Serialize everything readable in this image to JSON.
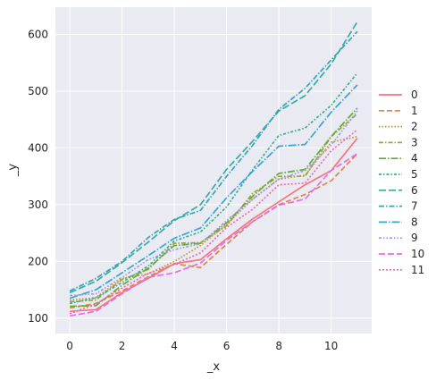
{
  "chart_data": {
    "type": "line",
    "xlabel": "_x",
    "ylabel": "_y",
    "xlim": [
      -0.55,
      11.55
    ],
    "ylim": [
      73,
      648
    ],
    "x_ticks": [
      0,
      2,
      4,
      6,
      8,
      10
    ],
    "y_ticks": [
      100,
      200,
      300,
      400,
      500,
      600
    ],
    "grid": true,
    "legend_position": "right",
    "x": [
      0,
      1,
      2,
      3,
      4,
      5,
      6,
      7,
      8,
      9,
      10,
      11
    ],
    "series": [
      {
        "name": "0",
        "color": "#f3757f",
        "dash": "",
        "values": [
          112,
          115,
          145,
          170,
          196,
          203,
          240,
          275,
          305,
          335,
          360,
          417
        ]
      },
      {
        "name": "1",
        "color": "#e2853e",
        "dash": "6,3",
        "values": [
          118,
          126,
          148,
          173,
          196,
          189,
          230,
          270,
          300,
          318,
          342,
          390
        ]
      },
      {
        "name": "2",
        "color": "#bd962f",
        "dash": "1.5,2",
        "values": [
          132,
          136,
          170,
          178,
          200,
          228,
          265,
          310,
          345,
          352,
          410,
          420
        ]
      },
      {
        "name": "3",
        "color": "#9fa33a",
        "dash": "5,2,1.5,2",
        "values": [
          129,
          132,
          168,
          186,
          232,
          233,
          263,
          320,
          350,
          350,
          420,
          460
        ]
      },
      {
        "name": "4",
        "color": "#5cae35",
        "dash": "8,2,1.5,2",
        "values": [
          121,
          122,
          158,
          188,
          228,
          232,
          268,
          315,
          355,
          362,
          420,
          470
        ]
      },
      {
        "name": "5",
        "color": "#34b089",
        "dash": "3,2,1.5,2",
        "values": [
          126,
          136,
          163,
          192,
          236,
          252,
          296,
          362,
          422,
          435,
          475,
          532
        ]
      },
      {
        "name": "6",
        "color": "#36ad9f",
        "dash": "8,3",
        "values": [
          145,
          165,
          198,
          234,
          272,
          300,
          362,
          412,
          465,
          492,
          548,
          622
        ]
      },
      {
        "name": "7",
        "color": "#36a6b3",
        "dash": "6,2,1.5,2",
        "values": [
          148,
          170,
          200,
          242,
          274,
          290,
          350,
          405,
          468,
          505,
          555,
          605
        ]
      },
      {
        "name": "8",
        "color": "#38a4d4",
        "dash": "9,2,1.5,2",
        "values": [
          135,
          150,
          180,
          210,
          241,
          259,
          312,
          359,
          403,
          406,
          463,
          511
        ]
      },
      {
        "name": "9",
        "color": "#a296e9",
        "dash": "3,2,1.5,2,1.5,2",
        "values": [
          140,
          143,
          172,
          203,
          221,
          231,
          272,
          310,
          345,
          360,
          405,
          465
        ]
      },
      {
        "name": "10",
        "color": "#e36fe5",
        "dash": "7,3",
        "values": [
          104,
          112,
          143,
          172,
          180,
          197,
          237,
          270,
          299,
          310,
          360,
          390
        ]
      },
      {
        "name": "11",
        "color": "#f268b8",
        "dash": "2,2",
        "values": [
          108,
          125,
          153,
          179,
          195,
          215,
          260,
          292,
          335,
          338,
          395,
          432
        ]
      }
    ]
  }
}
